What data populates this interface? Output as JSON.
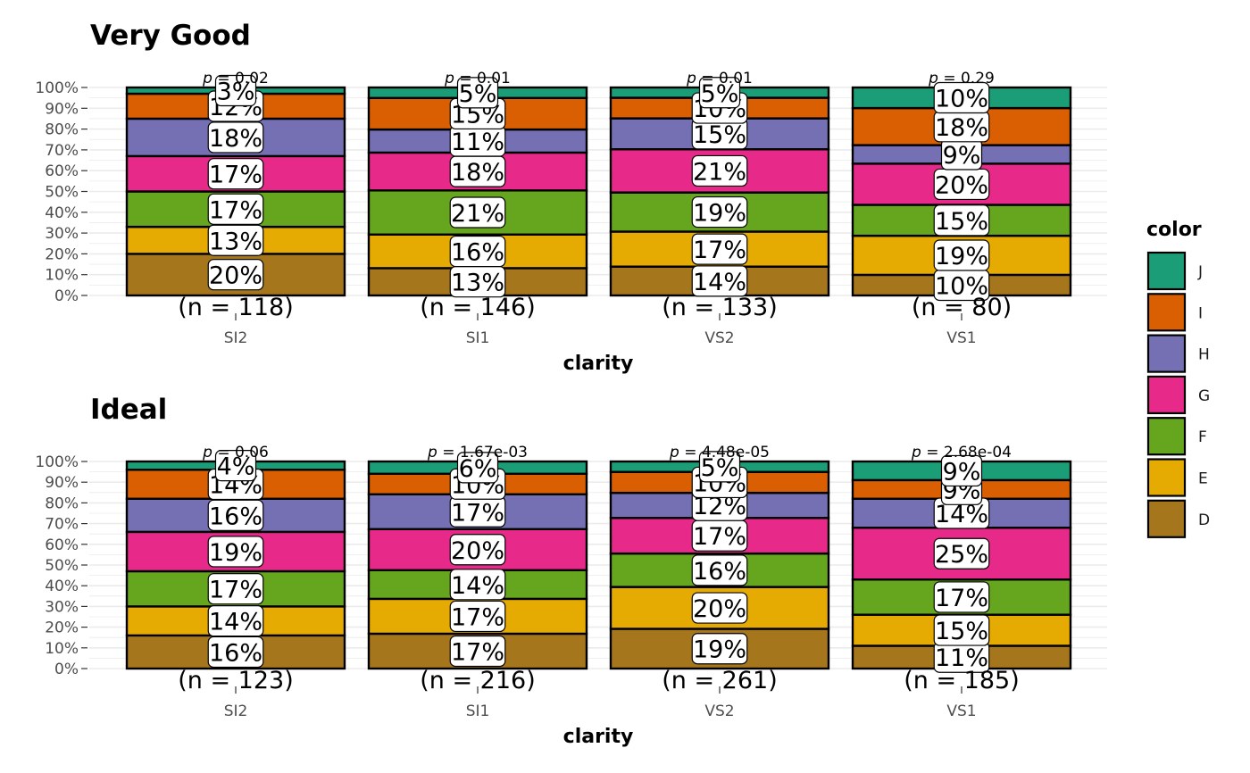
{
  "chart_data": [
    {
      "type": "bar",
      "stacked": "percent",
      "title": "Very Good",
      "xlabel": "clarity",
      "ylabel": "",
      "ylim": [
        0,
        100
      ],
      "yticks": [
        "0%",
        "10%",
        "20%",
        "30%",
        "40%",
        "50%",
        "60%",
        "70%",
        "80%",
        "90%",
        "100%"
      ],
      "categories": [
        "SI2",
        "SI1",
        "VS2",
        "VS1"
      ],
      "n_labels": [
        "(n = 118)",
        "(n = 146)",
        "(n = 133)",
        "(n = 80)"
      ],
      "p_labels": [
        "p = 0.02",
        "p = 0.01",
        "p = 0.01",
        "p = 0.29"
      ],
      "series": [
        {
          "name": "D",
          "values": [
            20,
            13,
            14,
            10
          ]
        },
        {
          "name": "E",
          "values": [
            13,
            16,
            17,
            19
          ]
        },
        {
          "name": "F",
          "values": [
            17,
            21,
            19,
            15
          ]
        },
        {
          "name": "G",
          "values": [
            17,
            18,
            21,
            20
          ]
        },
        {
          "name": "H",
          "values": [
            18,
            11,
            15,
            9
          ]
        },
        {
          "name": "I",
          "values": [
            12,
            15,
            10,
            18
          ]
        },
        {
          "name": "J",
          "values": [
            3,
            5,
            5,
            10
          ]
        }
      ],
      "grid": true,
      "legend": "right"
    },
    {
      "type": "bar",
      "stacked": "percent",
      "title": "Ideal",
      "xlabel": "clarity",
      "ylabel": "",
      "ylim": [
        0,
        100
      ],
      "yticks": [
        "0%",
        "10%",
        "20%",
        "30%",
        "40%",
        "50%",
        "60%",
        "70%",
        "80%",
        "90%",
        "100%"
      ],
      "categories": [
        "SI2",
        "SI1",
        "VS2",
        "VS1"
      ],
      "n_labels": [
        "(n = 123)",
        "(n = 216)",
        "(n = 261)",
        "(n = 185)"
      ],
      "p_labels": [
        "p = 0.06",
        "p = 1.67e-03",
        "p = 4.48e-05",
        "p = 2.68e-04"
      ],
      "series": [
        {
          "name": "D",
          "values": [
            16,
            17,
            19,
            11
          ]
        },
        {
          "name": "E",
          "values": [
            14,
            17,
            20,
            15
          ]
        },
        {
          "name": "F",
          "values": [
            17,
            14,
            16,
            17
          ]
        },
        {
          "name": "G",
          "values": [
            19,
            20,
            17,
            25
          ]
        },
        {
          "name": "H",
          "values": [
            16,
            17,
            12,
            14
          ]
        },
        {
          "name": "I",
          "values": [
            14,
            10,
            10,
            9
          ]
        },
        {
          "name": "J",
          "values": [
            4,
            6,
            5,
            9
          ]
        }
      ],
      "grid": true,
      "legend": "right"
    }
  ],
  "legend": {
    "title": "color",
    "items": [
      {
        "label": "J",
        "color": "#1b9e77"
      },
      {
        "label": "I",
        "color": "#d95f02"
      },
      {
        "label": "H",
        "color": "#7570b3"
      },
      {
        "label": "G",
        "color": "#e7298a"
      },
      {
        "label": "F",
        "color": "#66a61e"
      },
      {
        "label": "E",
        "color": "#e6ab02"
      },
      {
        "label": "D",
        "color": "#a6761d"
      }
    ]
  },
  "colors": {
    "D": "#a6761d",
    "E": "#e6ab02",
    "F": "#66a61e",
    "G": "#e7298a",
    "H": "#7570b3",
    "I": "#d95f02",
    "J": "#1b9e77",
    "grid": "#ebebeb"
  }
}
